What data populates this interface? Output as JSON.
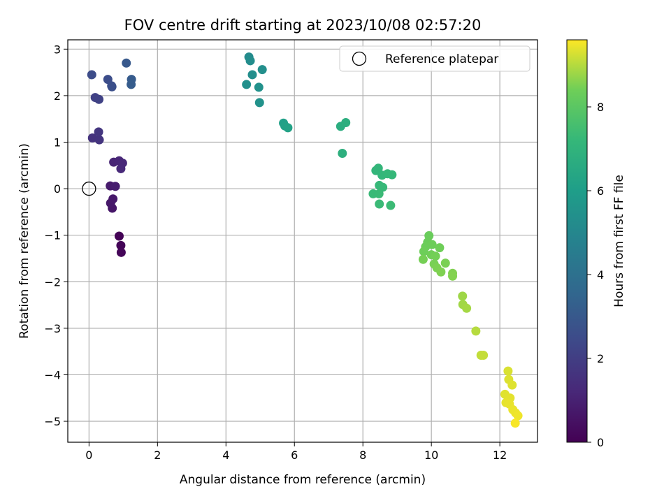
{
  "chart_data": {
    "type": "scatter",
    "title": "FOV centre drift starting at 2023/10/08 02:57:20",
    "xlabel": "Angular distance from reference (arcmin)",
    "ylabel": "Rotation from reference (arcmin)",
    "xlim": [
      -0.62,
      13.1
    ],
    "ylim": [
      -5.45,
      3.2
    ],
    "xticks": [
      0,
      2,
      4,
      6,
      8,
      10,
      12
    ],
    "yticks": [
      -5,
      -4,
      -3,
      -2,
      -1,
      0,
      1,
      2,
      3
    ],
    "grid": true,
    "legend": {
      "position": "upper right",
      "entries": [
        "Reference platepar"
      ]
    },
    "reference_point": {
      "x": 0,
      "y": 0,
      "marker": "open-circle"
    },
    "colorbar": {
      "label": "Hours from first FF file",
      "colormap": "viridis",
      "range": [
        0,
        9.6
      ],
      "ticks": [
        0,
        2,
        4,
        6,
        8
      ]
    },
    "points": [
      {
        "x": 0.88,
        "y": -1.02,
        "t": 0.05
      },
      {
        "x": 0.93,
        "y": -1.22,
        "t": 0.1
      },
      {
        "x": 0.94,
        "y": -1.37,
        "t": 0.15
      },
      {
        "x": 0.68,
        "y": -0.42,
        "t": 0.65
      },
      {
        "x": 0.63,
        "y": -0.31,
        "t": 0.7
      },
      {
        "x": 0.7,
        "y": -0.22,
        "t": 0.75
      },
      {
        "x": 0.62,
        "y": 0.06,
        "t": 0.8
      },
      {
        "x": 0.77,
        "y": 0.05,
        "t": 0.85
      },
      {
        "x": 0.72,
        "y": 0.57,
        "t": 1.1
      },
      {
        "x": 0.88,
        "y": 0.6,
        "t": 1.15
      },
      {
        "x": 0.98,
        "y": 0.55,
        "t": 1.2
      },
      {
        "x": 0.93,
        "y": 0.43,
        "t": 1.25
      },
      {
        "x": 0.1,
        "y": 1.09,
        "t": 1.6
      },
      {
        "x": 0.3,
        "y": 1.05,
        "t": 1.65
      },
      {
        "x": 0.28,
        "y": 1.22,
        "t": 1.7
      },
      {
        "x": 0.18,
        "y": 1.96,
        "t": 2.1
      },
      {
        "x": 0.29,
        "y": 1.92,
        "t": 2.15
      },
      {
        "x": 0.08,
        "y": 2.45,
        "t": 2.5
      },
      {
        "x": 0.55,
        "y": 2.35,
        "t": 2.55
      },
      {
        "x": 0.66,
        "y": 2.21,
        "t": 2.6
      },
      {
        "x": 0.67,
        "y": 2.19,
        "t": 2.65
      },
      {
        "x": 1.09,
        "y": 2.7,
        "t": 3.0
      },
      {
        "x": 1.24,
        "y": 2.35,
        "t": 3.1
      },
      {
        "x": 1.23,
        "y": 2.24,
        "t": 3.15
      },
      {
        "x": 4.67,
        "y": 2.83,
        "t": 5.2
      },
      {
        "x": 4.71,
        "y": 2.75,
        "t": 5.25
      },
      {
        "x": 4.77,
        "y": 2.45,
        "t": 5.3
      },
      {
        "x": 5.06,
        "y": 2.56,
        "t": 5.35
      },
      {
        "x": 4.6,
        "y": 2.24,
        "t": 5.4
      },
      {
        "x": 4.96,
        "y": 2.18,
        "t": 5.45
      },
      {
        "x": 4.98,
        "y": 1.85,
        "t": 5.5
      },
      {
        "x": 5.68,
        "y": 1.41,
        "t": 6.1
      },
      {
        "x": 5.72,
        "y": 1.35,
        "t": 6.15
      },
      {
        "x": 5.81,
        "y": 1.31,
        "t": 6.2
      },
      {
        "x": 7.35,
        "y": 1.34,
        "t": 6.7
      },
      {
        "x": 7.5,
        "y": 1.42,
        "t": 6.75
      },
      {
        "x": 7.4,
        "y": 0.76,
        "t": 6.8
      },
      {
        "x": 8.38,
        "y": 0.39,
        "t": 7.1
      },
      {
        "x": 8.45,
        "y": 0.44,
        "t": 7.12
      },
      {
        "x": 8.56,
        "y": 0.29,
        "t": 7.15
      },
      {
        "x": 8.72,
        "y": 0.32,
        "t": 7.18
      },
      {
        "x": 8.85,
        "y": 0.3,
        "t": 7.2
      },
      {
        "x": 8.48,
        "y": 0.07,
        "t": 7.22
      },
      {
        "x": 8.58,
        "y": 0.03,
        "t": 7.25
      },
      {
        "x": 8.3,
        "y": -0.11,
        "t": 7.28
      },
      {
        "x": 8.47,
        "y": -0.11,
        "t": 7.3
      },
      {
        "x": 8.48,
        "y": -0.33,
        "t": 7.32
      },
      {
        "x": 8.81,
        "y": -0.36,
        "t": 7.35
      },
      {
        "x": 9.93,
        "y": -1.01,
        "t": 8.3
      },
      {
        "x": 9.89,
        "y": -1.15,
        "t": 8.32
      },
      {
        "x": 9.83,
        "y": -1.25,
        "t": 8.34
      },
      {
        "x": 10.02,
        "y": -1.2,
        "t": 8.36
      },
      {
        "x": 9.78,
        "y": -1.35,
        "t": 8.38
      },
      {
        "x": 10.24,
        "y": -1.27,
        "t": 8.4
      },
      {
        "x": 10.0,
        "y": -1.42,
        "t": 8.42
      },
      {
        "x": 10.12,
        "y": -1.45,
        "t": 8.44
      },
      {
        "x": 9.76,
        "y": -1.52,
        "t": 8.46
      },
      {
        "x": 10.08,
        "y": -1.62,
        "t": 8.48
      },
      {
        "x": 10.41,
        "y": -1.6,
        "t": 8.5
      },
      {
        "x": 10.16,
        "y": -1.7,
        "t": 8.52
      },
      {
        "x": 10.28,
        "y": -1.79,
        "t": 8.54
      },
      {
        "x": 10.62,
        "y": -1.82,
        "t": 8.56
      },
      {
        "x": 10.62,
        "y": -1.88,
        "t": 8.58
      },
      {
        "x": 10.91,
        "y": -2.31,
        "t": 8.8
      },
      {
        "x": 10.92,
        "y": -2.49,
        "t": 8.83
      },
      {
        "x": 11.03,
        "y": -2.57,
        "t": 8.86
      },
      {
        "x": 11.3,
        "y": -3.06,
        "t": 9.0
      },
      {
        "x": 11.45,
        "y": -3.58,
        "t": 9.1
      },
      {
        "x": 11.52,
        "y": -3.58,
        "t": 9.12
      },
      {
        "x": 12.24,
        "y": -3.92,
        "t": 9.3
      },
      {
        "x": 12.26,
        "y": -4.1,
        "t": 9.32
      },
      {
        "x": 12.36,
        "y": -4.22,
        "t": 9.34
      },
      {
        "x": 12.15,
        "y": -4.42,
        "t": 9.36
      },
      {
        "x": 12.3,
        "y": -4.5,
        "t": 9.38
      },
      {
        "x": 12.18,
        "y": -4.6,
        "t": 9.4
      },
      {
        "x": 12.28,
        "y": -4.63,
        "t": 9.42
      },
      {
        "x": 12.38,
        "y": -4.75,
        "t": 9.44
      },
      {
        "x": 12.46,
        "y": -4.82,
        "t": 9.46
      },
      {
        "x": 12.53,
        "y": -4.88,
        "t": 9.48
      },
      {
        "x": 12.45,
        "y": -5.04,
        "t": 9.55
      }
    ]
  }
}
